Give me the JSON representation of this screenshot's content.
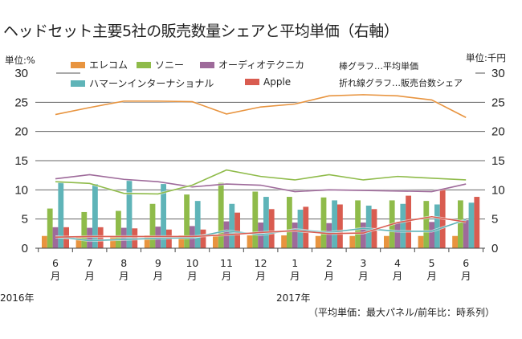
{
  "title": "ヘッドセット主要5社の販売数量シェアと平均単価（右軸）",
  "unit_left": "単位:%",
  "unit_right": "単位:千円",
  "legend_note_bar": "棒グラフ…平均単価",
  "legend_note_line": "折れ線グラフ…販売台数シェア",
  "caption": "（平均単価：最大パネル/前年比：時系列）",
  "year_labels": [
    "2016年",
    "2017年"
  ],
  "chart_data": {
    "type": "bar",
    "title": "ヘッドセット主要5社の販売数量シェアと平均単価（右軸）",
    "xlabel": "",
    "ylabel_left": "単位:%",
    "ylabel_right": "単位:千円",
    "ylim_left": [
      0,
      30
    ],
    "ylim_right": [
      0,
      30
    ],
    "yticks": [
      0,
      5,
      10,
      15,
      20,
      25,
      30
    ],
    "grid": true,
    "legend_position": "top",
    "categories": [
      "6\n月",
      "7\n月",
      "8\n月",
      "9\n月",
      "10\n月",
      "11\n月",
      "12\n月",
      "1\n月",
      "2\n月",
      "3\n月",
      "4\n月",
      "5\n月",
      "6\n月"
    ],
    "category_numbers": [
      "6",
      "7",
      "8",
      "9",
      "10",
      "11",
      "12",
      "1",
      "2",
      "3",
      "4",
      "5",
      "6"
    ],
    "category_suffix": "月",
    "series": [
      {
        "name": "エレコム",
        "color": "#E8943F",
        "bar_values": [
          2.1,
          2.0,
          2.0,
          2.2,
          2.2,
          2.2,
          2.2,
          2.2,
          2.1,
          2.1,
          2.1,
          2.1,
          2.1
        ],
        "line_values": [
          22.9,
          24.1,
          25.2,
          25.2,
          25.1,
          23.0,
          24.2,
          24.7,
          26.1,
          26.3,
          26.1,
          25.4,
          22.4
        ]
      },
      {
        "name": "ソニー",
        "color": "#8FBB4A",
        "bar_values": [
          6.8,
          6.2,
          6.4,
          7.6,
          9.2,
          11.2,
          9.7,
          8.8,
          8.7,
          8.2,
          8.2,
          8.1,
          8.2
        ],
        "line_values": [
          11.4,
          11.1,
          9.4,
          9.3,
          10.8,
          13.4,
          12.3,
          11.7,
          12.6,
          11.7,
          12.3,
          12.0,
          11.7
        ]
      },
      {
        "name": "オーディオテクニカ",
        "color": "#9E6A9A",
        "bar_values": [
          3.6,
          3.5,
          3.5,
          3.7,
          3.8,
          4.6,
          4.4,
          4.4,
          4.3,
          4.4,
          4.4,
          4.5,
          4.8
        ],
        "line_values": [
          11.9,
          12.6,
          11.8,
          11.4,
          10.5,
          11.0,
          10.8,
          9.7,
          10.0,
          9.9,
          9.8,
          9.7,
          11.0
        ]
      },
      {
        "name": "ハマーンインターナショナル",
        "color": "#5FB4B8",
        "bar_values": [
          11.3,
          11.0,
          11.6,
          11.0,
          8.1,
          7.6,
          8.8,
          6.6,
          8.2,
          7.3,
          7.6,
          7.5,
          7.8
        ],
        "line_values": [
          2.0,
          1.3,
          1.5,
          1.7,
          1.8,
          3.0,
          2.3,
          3.2,
          2.7,
          3.4,
          2.9,
          2.9,
          4.9
        ]
      },
      {
        "name": "Apple",
        "color": "#D95C50",
        "bar_values": [
          3.6,
          3.6,
          3.4,
          3.2,
          3.2,
          6.1,
          6.7,
          7.1,
          7.5,
          6.7,
          9.0,
          10.1,
          8.8
        ],
        "line_values": [
          1.9,
          2.0,
          2.0,
          2.0,
          2.0,
          2.3,
          2.7,
          3.0,
          2.5,
          2.6,
          4.4,
          5.4,
          4.5
        ]
      }
    ]
  }
}
